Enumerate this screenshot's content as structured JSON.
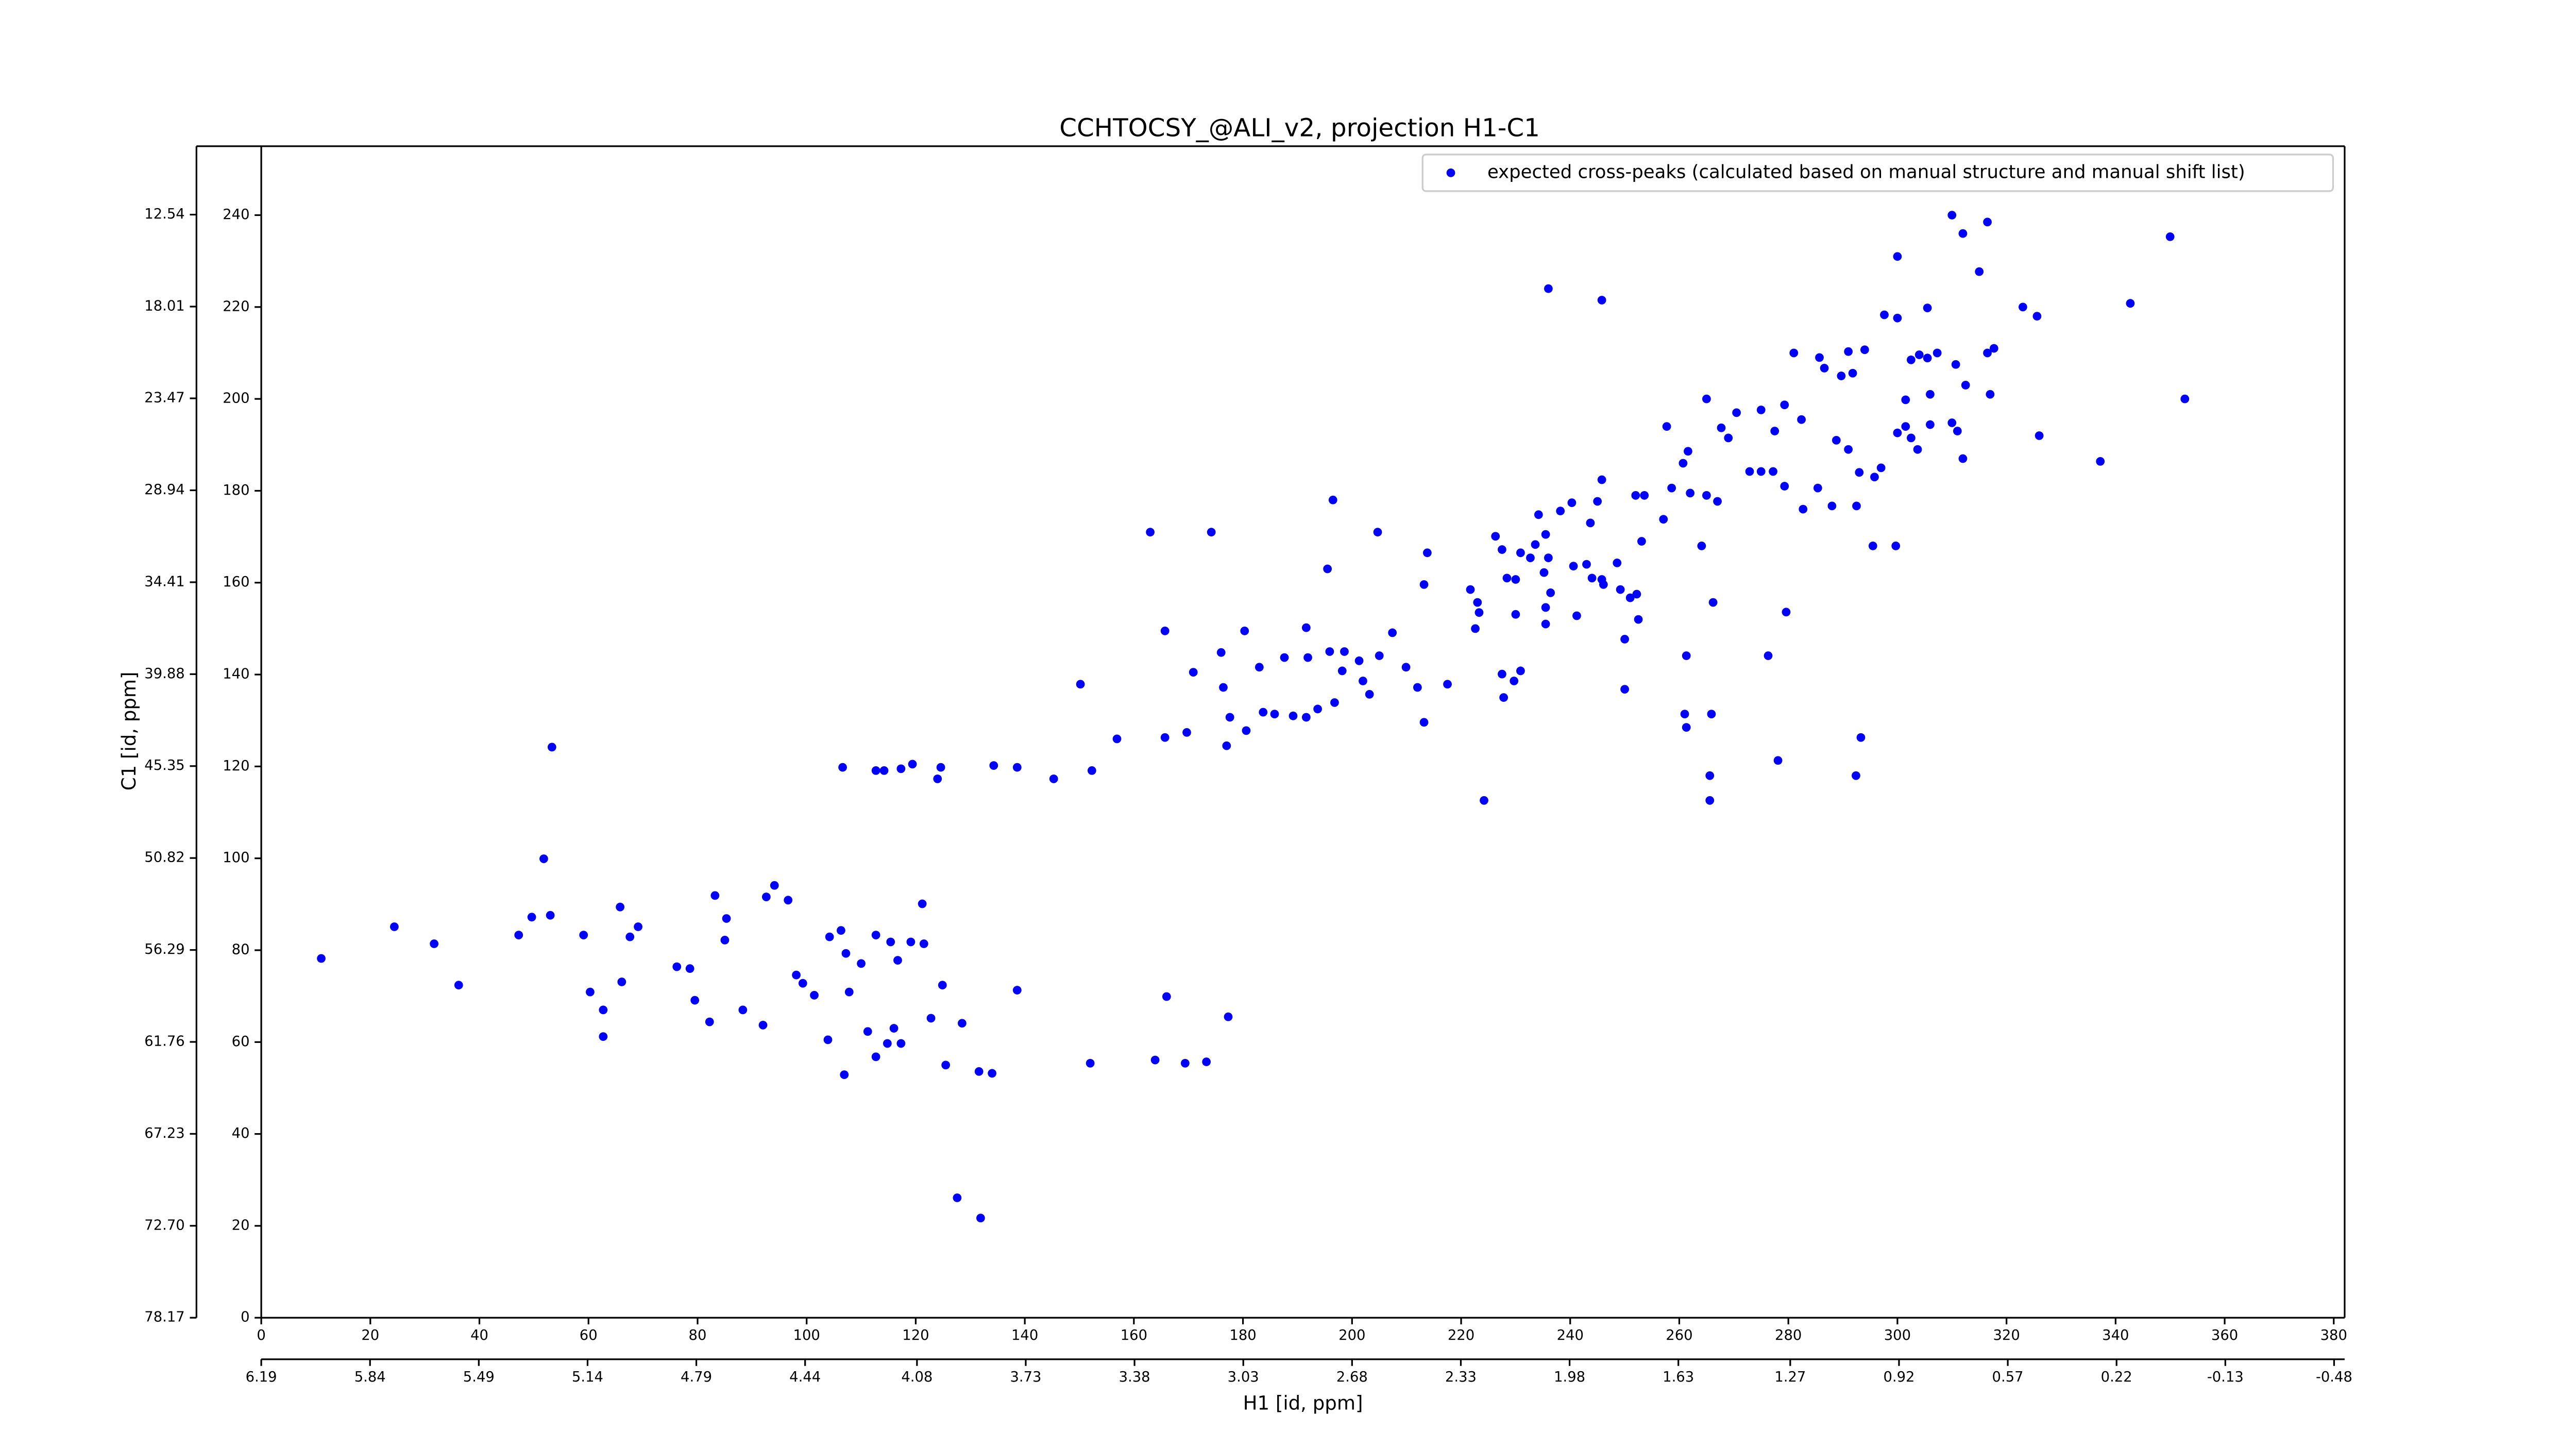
{
  "chart_data": {
    "type": "scatter",
    "title": "CCHTOCSY_@ALI_v2, projection H1-C1",
    "x_label": "H1 [id, ppm]",
    "y_label": "C1 [id, ppm]",
    "xlim": [
      0,
      382
    ],
    "ylim": [
      0,
      255
    ],
    "xticks": [
      0,
      20,
      40,
      60,
      80,
      100,
      120,
      140,
      160,
      180,
      200,
      220,
      240,
      260,
      280,
      300,
      320,
      340,
      360,
      380
    ],
    "yticks": [
      0,
      20,
      40,
      60,
      80,
      100,
      120,
      140,
      160,
      180,
      200,
      220,
      240
    ],
    "x2lim": [
      6.19,
      -0.514
    ],
    "x2ticks": [
      6.19,
      5.84,
      5.49,
      5.14,
      4.79,
      4.44,
      4.08,
      3.73,
      3.38,
      3.03,
      2.68,
      2.33,
      1.98,
      1.63,
      1.27,
      0.92,
      0.57,
      0.22,
      -0.13,
      -0.48
    ],
    "y2lim": [
      78.17,
      8.47
    ],
    "y2ticks": [
      78.17,
      {
        "value": 72.7,
        "label": "72.70"
      },
      67.23,
      61.76,
      56.29,
      50.82,
      45.35,
      39.88,
      34.41,
      28.94,
      23.47,
      18.01,
      12.54
    ],
    "legend": "upper right",
    "series": [
      {
        "name": "expected cross-peaks (calculated based on manual structure and manual shift list)",
        "color": "#0000ff",
        "x": [
          350,
          310,
          316.5,
          312,
          300,
          315,
          236,
          245.8,
          323,
          325.6,
          342.7,
          305.5,
          300,
          297.6,
          281,
          285.7,
          291,
          294,
          289.7,
          291.8,
          286.6,
          302.5,
          304,
          305.5,
          307.3,
          310.7,
          316.5,
          317.7,
          317,
          312.5,
          306,
          301.5,
          306,
          310,
          311,
          303.7,
          312,
          302.5,
          352.7,
          326,
          337.2,
          288.8,
          291,
          293,
          295.8,
          297,
          300,
          301.5,
          288,
          292.5,
          282.7,
          295.5,
          299.7,
          265,
          270.5,
          275,
          279.3,
          282.4,
          277.5,
          257.7,
          261.6,
          260.7,
          269,
          267.7,
          272.9,
          275,
          277.2,
          279.3,
          285.4,
          258.6,
          262,
          265,
          267,
          252,
          253.6,
          245.8,
          245,
          240.3,
          238.2,
          243.7,
          234.2,
          235.5,
          257.1,
          253.1,
          264.1,
          226.3,
          227.5,
          230.9,
          233.6,
          232.7,
          236,
          221.7,
          228.4,
          230,
          235.2,
          240.6,
          244,
          246.1,
          248.6,
          243,
          223,
          230,
          235.5,
          236.4,
          245.8,
          249.2,
          252.2,
          251,
          213.8,
          213.2,
          223.3,
          222.6,
          235.5,
          241.2,
          252.5,
          250,
          163,
          174.2,
          204.7,
          196.5,
          195.5,
          279.6,
          266.2,
          261.3,
          276.3,
          165.7,
          180.3,
          191.6,
          207.4,
          201.3,
          205,
          209.9,
          198.2,
          191.9,
          195.9,
          198.6,
          150.2,
          176,
          176.4,
          183,
          187.6,
          170.9,
          177.6,
          183.7,
          185.8,
          189.2,
          191.6,
          193.7,
          196.8,
          203.2,
          169.7,
          180.6,
          165.7,
          156.9,
          177,
          202,
          212,
          213.2,
          217.5,
          227.5,
          229.7,
          227.8,
          230.9,
          261,
          261.3,
          265.9,
          250,
          293.3,
          292.4,
          278.1,
          265.6,
          265.6,
          224.2,
          106.6,
          112.7,
          114.2,
          117.3,
          119.4,
          124.6,
          124,
          134.3,
          138.6,
          145.3,
          152.3,
          53.3,
          51.8,
          11,
          24.4,
          31.7,
          36.2,
          47.2,
          49.6,
          53,
          59.1,
          65.8,
          67.6,
          69.1,
          60.3,
          62.7,
          62.7,
          66.1,
          76.2,
          78.6,
          79.5,
          82.2,
          83.2,
          85.3,
          85,
          88.3,
          92,
          92.6,
          94.1,
          96.6,
          98.1,
          99.3,
          101.4,
          104.2,
          106.3,
          107.2,
          107.8,
          110,
          112.7,
          115.4,
          116.7,
          119.1,
          121.5,
          121.2,
          124.9,
          122.8,
          116,
          117.3,
          103.9,
          106.9,
          111.2,
          112.7,
          114.8,
          125.5,
          131.6,
          134,
          138.6,
          128.5,
          152,
          163.9,
          166,
          169.4,
          173.3,
          177.3,
          127.6,
          131.9
        ],
        "y": [
          235.3,
          240,
          238.5,
          236,
          231,
          227.7,
          224,
          221.5,
          220,
          218,
          220.8,
          219.8,
          217.6,
          218.3,
          210,
          209,
          210.3,
          210.7,
          205,
          205.6,
          206.7,
          208.5,
          209.6,
          208.9,
          210,
          207.5,
          210,
          211,
          201,
          203,
          201,
          199.8,
          194.4,
          194.8,
          193,
          189,
          187,
          191.5,
          200,
          192,
          186.4,
          191,
          189,
          184,
          183,
          185,
          192.6,
          194,
          176.7,
          176.7,
          176,
          168,
          168,
          200,
          197,
          197.6,
          198.7,
          195.5,
          193,
          194,
          188.6,
          186,
          191.5,
          193.7,
          184.2,
          184.2,
          184.2,
          181,
          180.6,
          180.6,
          179.5,
          179,
          177.7,
          179,
          179,
          182.4,
          177.7,
          177.4,
          175.6,
          173,
          174.8,
          170.5,
          173.8,
          169,
          168,
          170.1,
          167.2,
          166.5,
          168.3,
          165.4,
          165.4,
          158.5,
          161,
          160.7,
          162.2,
          163.6,
          161,
          159.6,
          164.3,
          164,
          155.7,
          153.1,
          154.6,
          157.8,
          160.7,
          158.5,
          157.5,
          156.7,
          166.5,
          159.6,
          153.5,
          150,
          151,
          152.8,
          152,
          147.7,
          171,
          171,
          171,
          178,
          163,
          153.6,
          155.7,
          144.1,
          144.1,
          149.5,
          149.5,
          150.2,
          149.1,
          143,
          144.1,
          141.6,
          140.8,
          143.7,
          145,
          145,
          137.9,
          144.8,
          137.2,
          141.6,
          143.7,
          140.5,
          130.7,
          131.8,
          131.4,
          131,
          130.7,
          132.5,
          133.9,
          135.7,
          127.4,
          127.8,
          126.3,
          126,
          124.5,
          138.6,
          137.2,
          129.6,
          137.9,
          140.1,
          138.6,
          135,
          140.8,
          131.4,
          128.5,
          131.4,
          136.8,
          126.3,
          118,
          121.3,
          118,
          112.6,
          112.6,
          119.8,
          119.1,
          119.1,
          119.5,
          120.5,
          119.8,
          117.3,
          120.2,
          119.8,
          117.3,
          119.1,
          124.2,
          99.9,
          78.2,
          85.1,
          81.4,
          72.4,
          83.3,
          87.2,
          87.6,
          83.3,
          89.4,
          82.9,
          85.1,
          70.9,
          67,
          61.2,
          73.1,
          76.4,
          76,
          69.1,
          64.4,
          91.9,
          86.9,
          82.2,
          67,
          63.7,
          91.6,
          94.1,
          90.9,
          74.6,
          72.8,
          70.2,
          82.9,
          84.3,
          79.3,
          70.9,
          77.1,
          83.3,
          81.8,
          77.8,
          81.8,
          81.4,
          90.1,
          72.4,
          65.2,
          63,
          59.7,
          60.5,
          52.9,
          62.3,
          56.8,
          59.7,
          55,
          53.6,
          53.2,
          71.3,
          64.1,
          55.4,
          56.1,
          69.9,
          55.4,
          55.7,
          65.5,
          26.1,
          21.7
        ]
      }
    ]
  }
}
